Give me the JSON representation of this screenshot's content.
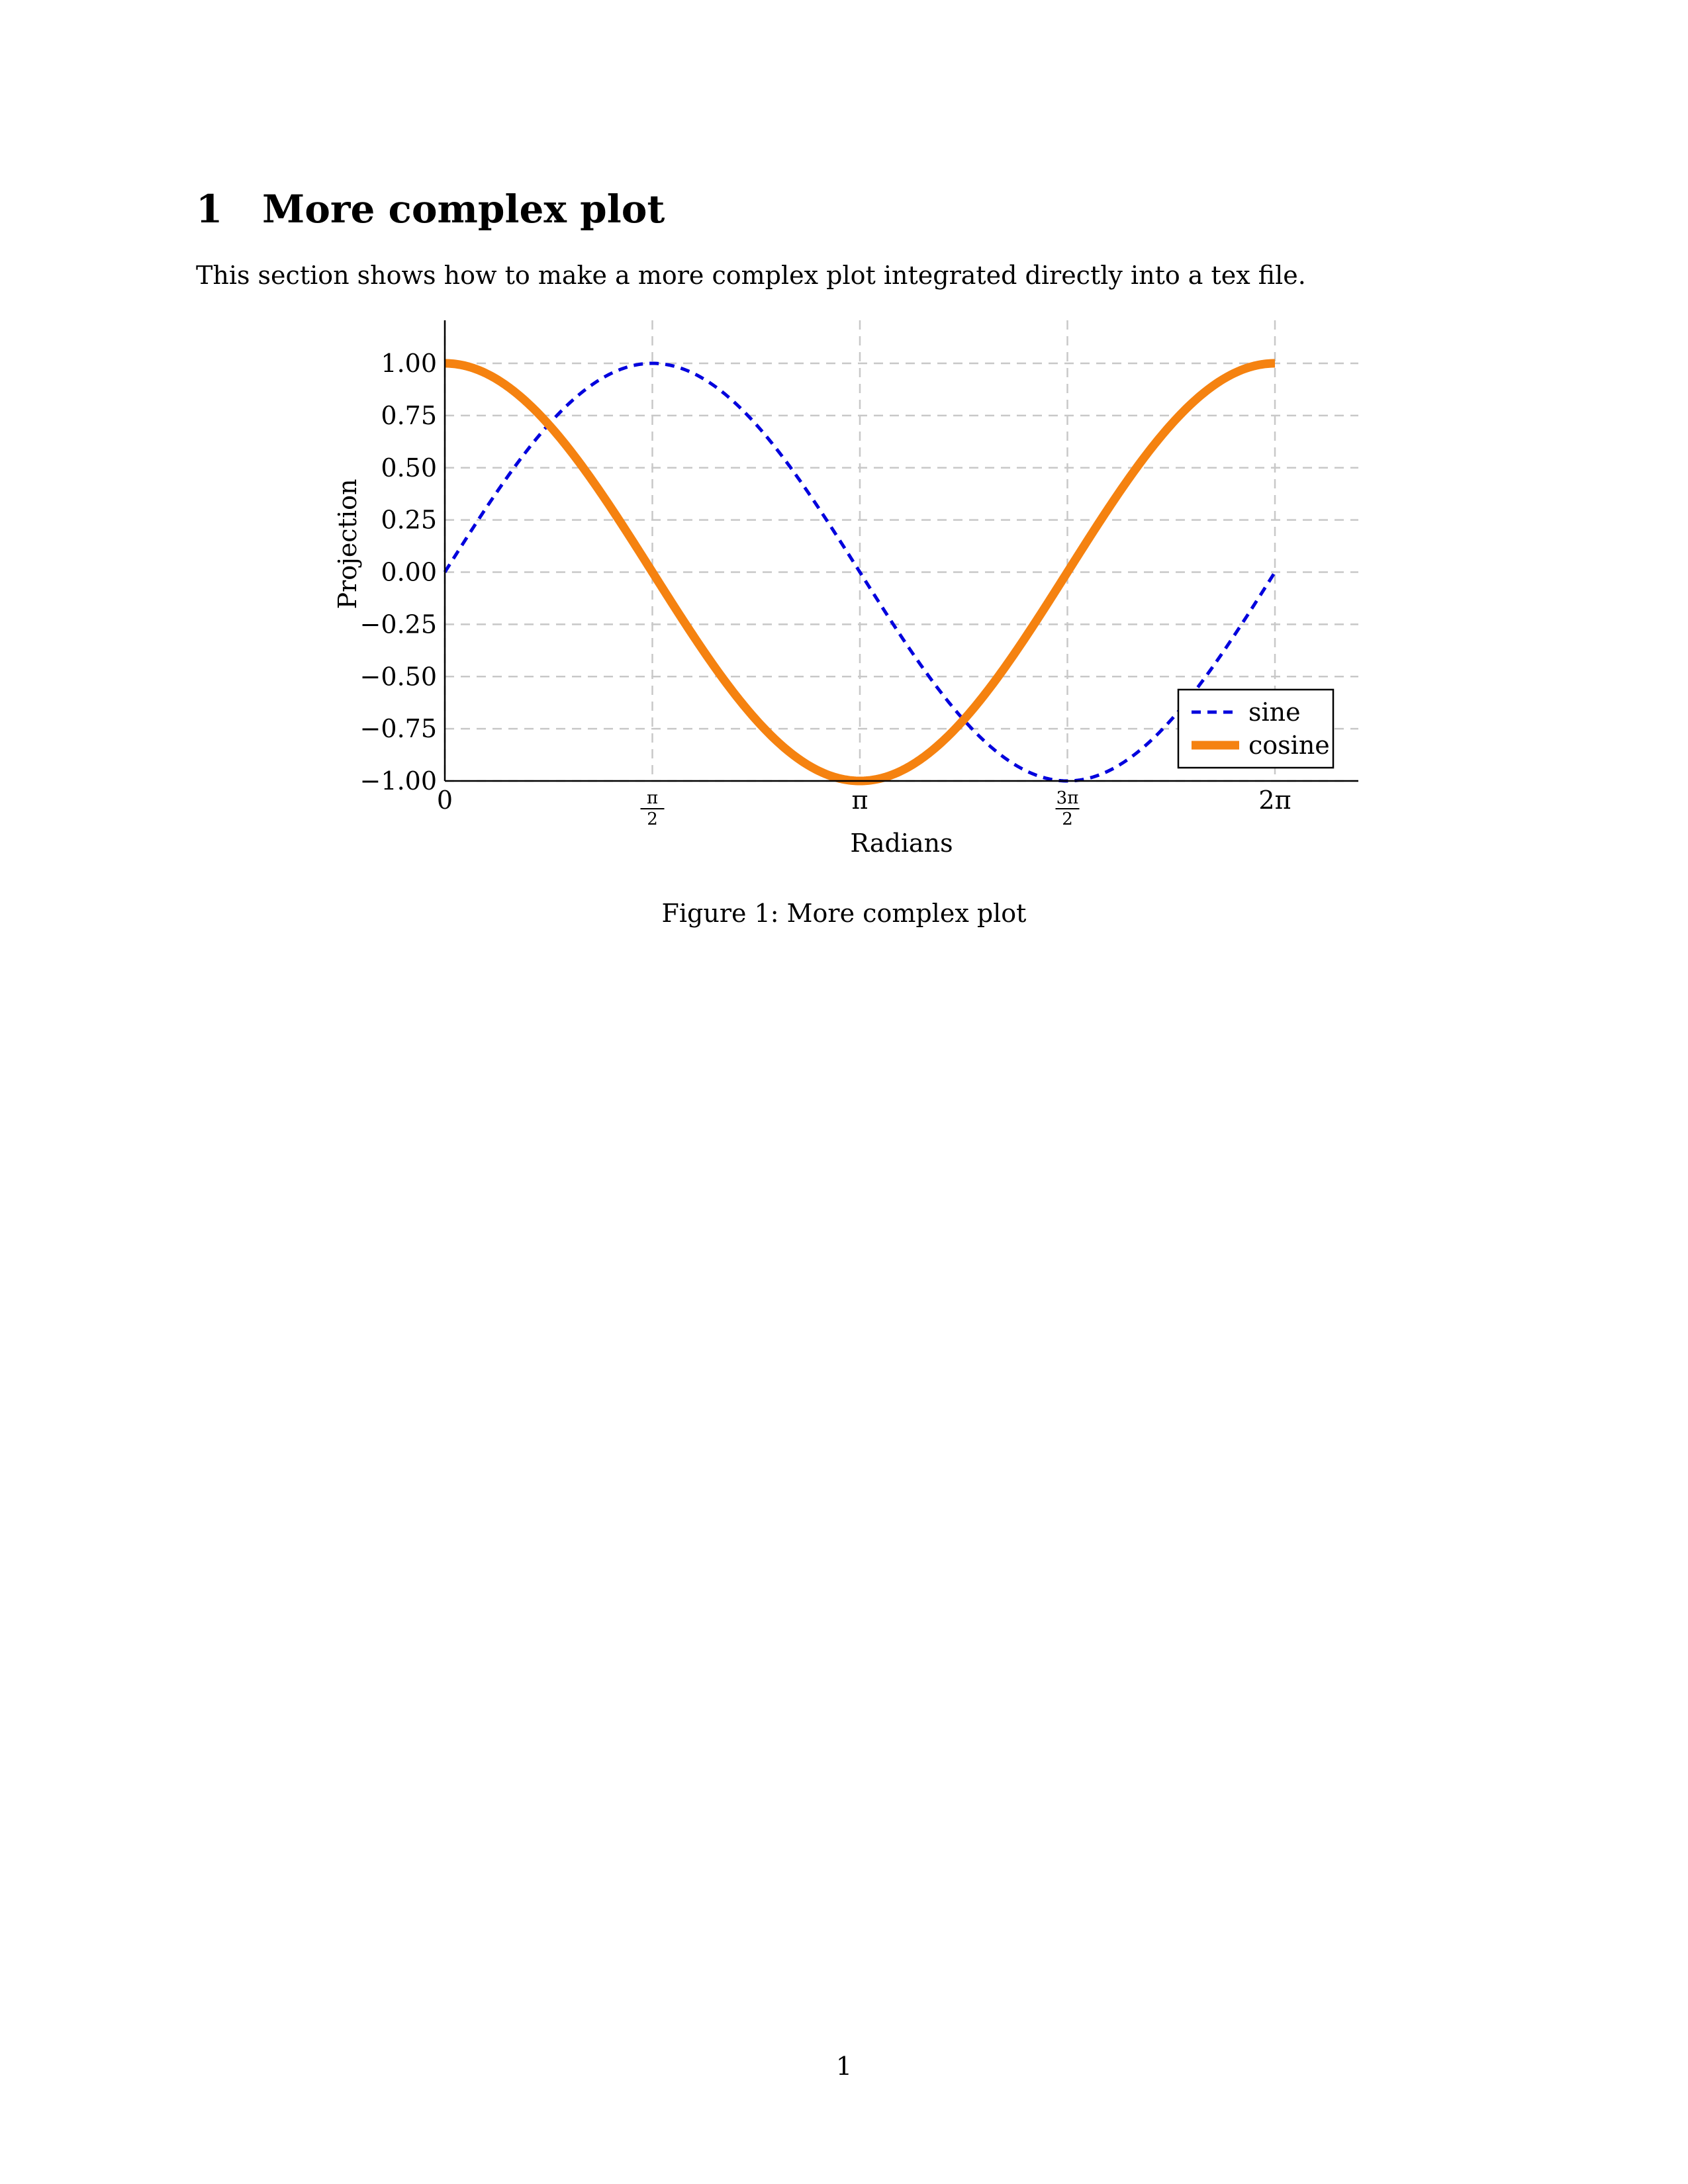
{
  "section": {
    "number": "1",
    "title": "More complex plot"
  },
  "intro": "This section shows how to make a more complex plot integrated directly into a tex file.",
  "figure": {
    "caption": "Figure 1: More complex plot"
  },
  "page_number": "1",
  "chart_data": {
    "type": "line",
    "title": "",
    "xlabel": "Radians",
    "ylabel": "Projection",
    "xlim": [
      0,
      6.9
    ],
    "ylim": [
      -1.0,
      1.2
    ],
    "grid": true,
    "legend_position": "bottom-right",
    "x_ticks": [
      {
        "value": 0,
        "label": "0"
      },
      {
        "value": 1.5708,
        "label_num": "π",
        "label_den": "2"
      },
      {
        "value": 3.1416,
        "label": "π"
      },
      {
        "value": 4.7124,
        "label_num": "3π",
        "label_den": "2"
      },
      {
        "value": 6.2832,
        "label": "2π"
      }
    ],
    "y_ticks": [
      {
        "value": 1.0,
        "label": "1.00"
      },
      {
        "value": 0.75,
        "label": "0.75"
      },
      {
        "value": 0.5,
        "label": "0.50"
      },
      {
        "value": 0.25,
        "label": "0.25"
      },
      {
        "value": 0.0,
        "label": "0.00"
      },
      {
        "value": -0.25,
        "label": "−0.25"
      },
      {
        "value": -0.5,
        "label": "−0.50"
      },
      {
        "value": -0.75,
        "label": "−0.75"
      },
      {
        "value": -1.0,
        "label": "−1.00"
      }
    ],
    "series": [
      {
        "name": "sine",
        "function": "sin",
        "x_range": [
          0,
          6.2832
        ],
        "color": "#0000dd",
        "style": "dashed"
      },
      {
        "name": "cosine",
        "function": "cos",
        "x_range": [
          0,
          6.2832
        ],
        "color": "#f58210",
        "style": "solid"
      }
    ]
  }
}
